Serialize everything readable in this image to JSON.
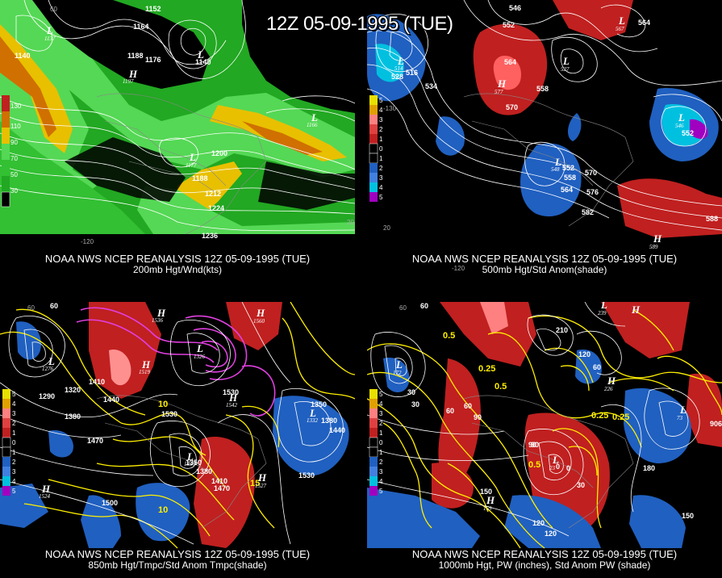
{
  "main_title": "12Z 05-09-1995 (TUE)",
  "panels": [
    {
      "id": "tl",
      "caption_line1": "NOAA NWS NCEP REANALYSIS 12Z 05-09-1995 (TUE)",
      "caption_line2": "200mb Hgt/Wnd(kts)",
      "colorbar": [
        "130",
        "110",
        "90",
        "70",
        "50",
        "30"
      ],
      "contour_labels": [
        "1152",
        "1164",
        "1140",
        "1188",
        "1176",
        "1140",
        "1200",
        "1188",
        "1212",
        "1224",
        "1236",
        "1186"
      ],
      "systems": [
        {
          "type": "L",
          "value": "1137"
        },
        {
          "type": "H",
          "value": "1197"
        },
        {
          "type": "L",
          "value": "1140"
        },
        {
          "type": "L",
          "value": "1177"
        },
        {
          "type": "L",
          "value": "1166"
        }
      ],
      "coords": [
        "60",
        "-120",
        "20"
      ]
    },
    {
      "id": "tr",
      "caption_line1": "NOAA NWS NCEP REANALYSIS 12Z 05-09-1995 (TUE)",
      "caption_line2": "500mb Hgt/Std Anom(shade)",
      "colorbar": [
        "5",
        "4",
        "3",
        "2",
        "1",
        "0",
        "1",
        "2",
        "3",
        "4",
        "5"
      ],
      "contour_labels": [
        "546",
        "552",
        "564",
        "534",
        "528",
        "516",
        "570",
        "558",
        "552",
        "558",
        "564",
        "570",
        "576",
        "582",
        "588",
        "552",
        "564"
      ],
      "systems": [
        {
          "type": "L",
          "value": "514"
        },
        {
          "type": "H",
          "value": "577"
        },
        {
          "type": "L",
          "value": "527"
        },
        {
          "type": "L",
          "value": "548"
        },
        {
          "type": "L",
          "value": "546"
        },
        {
          "type": "L",
          "value": "567"
        },
        {
          "type": "H",
          "value": "589"
        }
      ],
      "coords": [
        "-130",
        "-120",
        "20"
      ]
    },
    {
      "id": "bl",
      "caption_line1": "NOAA NWS NCEP REANALYSIS 12Z 05-09-1995 (TUE)",
      "caption_line2": "850mb Hgt/Tmpc/Std Anom Tmpc(shade)",
      "colorbar": [
        "5",
        "4",
        "3",
        "2",
        "1",
        "0",
        "1",
        "2",
        "3",
        "4",
        "5"
      ],
      "contour_labels": [
        "60",
        "1320",
        "1290",
        "1410",
        "1440",
        "1380",
        "1470",
        "1530",
        "1350",
        "1380",
        "1410",
        "1470",
        "1500",
        "1530",
        "1350",
        "1380",
        "1440",
        "1530",
        "10",
        "10",
        "15",
        "1500",
        "1350"
      ],
      "systems": [
        {
          "type": "L",
          "value": "1276"
        },
        {
          "type": "H",
          "value": "1536"
        },
        {
          "type": "H",
          "value": "1519"
        },
        {
          "type": "H",
          "value": "1560"
        },
        {
          "type": "L",
          "value": "1326"
        },
        {
          "type": "H",
          "value": "1542"
        },
        {
          "type": "L",
          "value": "1332"
        },
        {
          "type": "L",
          "value": "1330"
        },
        {
          "type": "H",
          "value": "1527"
        },
        {
          "type": "H",
          "value": "1524"
        }
      ],
      "coords": [
        "60"
      ]
    },
    {
      "id": "br",
      "caption_line1": "NOAA NWS NCEP REANALYSIS 12Z 05-09-1995 (TUE)",
      "caption_line2": "1000mb Hgt, PW (inches), Std Anom PW (shade)",
      "colorbar": [
        "5",
        "4",
        "3",
        "2",
        "1",
        "0",
        "1",
        "2",
        "3",
        "4",
        "5"
      ],
      "contour_labels": [
        "60",
        "0.5",
        "210",
        "120",
        "60",
        "0.25",
        "0.5",
        "30",
        "60",
        "90",
        "120",
        "90",
        "0",
        "30",
        "0.25",
        "0.25",
        "90",
        "180",
        "150",
        "150",
        "120",
        "0.5",
        "0",
        "60",
        "30",
        "90",
        "60"
      ],
      "systems": [
        {
          "type": "L",
          "value": "172"
        },
        {
          "type": "L",
          "value": "239"
        },
        {
          "type": "H",
          "value": "226"
        },
        {
          "type": "L",
          "value": "73"
        },
        {
          "type": "H",
          "value": "159"
        },
        {
          "type": "L",
          "value": "23"
        },
        {
          "type": "H",
          "value": "226"
        }
      ],
      "coords": [
        "60"
      ]
    }
  ],
  "colors": {
    "wind_light": "#33cc33",
    "wind_mid": "#66e066",
    "wind_yellow": "#e0c000",
    "wind_orange": "#d07000",
    "anom_red": "#c02020",
    "anom_pink": "#ff8080",
    "anom_blue": "#2060c0",
    "anom_cyan": "#00c0e0",
    "anom_purple": "#a000c0",
    "temp_contour": "#ffef00",
    "temp_cold": "#e040e0"
  }
}
